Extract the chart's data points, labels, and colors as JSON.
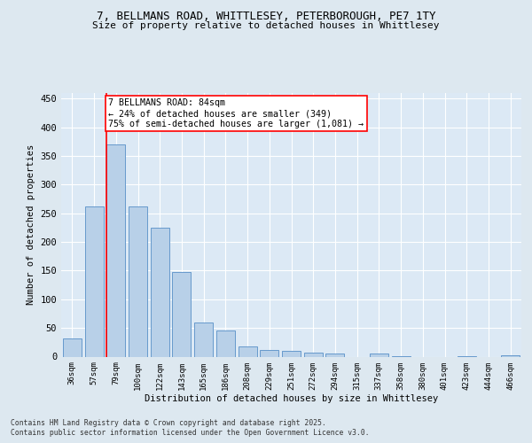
{
  "title_line1": "7, BELLMANS ROAD, WHITTLESEY, PETERBOROUGH, PE7 1TY",
  "title_line2": "Size of property relative to detached houses in Whittlesey",
  "xlabel": "Distribution of detached houses by size in Whittlesey",
  "ylabel": "Number of detached properties",
  "categories": [
    "36sqm",
    "57sqm",
    "79sqm",
    "100sqm",
    "122sqm",
    "143sqm",
    "165sqm",
    "186sqm",
    "208sqm",
    "229sqm",
    "251sqm",
    "272sqm",
    "294sqm",
    "315sqm",
    "337sqm",
    "358sqm",
    "380sqm",
    "401sqm",
    "423sqm",
    "444sqm",
    "466sqm"
  ],
  "values": [
    32,
    262,
    370,
    262,
    225,
    148,
    60,
    45,
    18,
    12,
    10,
    7,
    5,
    0,
    5,
    1,
    0,
    0,
    1,
    0,
    2
  ],
  "bar_color": "#b8d0e8",
  "bar_edge_color": "#6699cc",
  "red_line_index": 2,
  "annotation_title": "7 BELLMANS ROAD: 84sqm",
  "annotation_line2": "← 24% of detached houses are smaller (349)",
  "annotation_line3": "75% of semi-detached houses are larger (1,081) →",
  "ylim": [
    0,
    460
  ],
  "yticks": [
    0,
    50,
    100,
    150,
    200,
    250,
    300,
    350,
    400,
    450
  ],
  "footer_line1": "Contains HM Land Registry data © Crown copyright and database right 2025.",
  "footer_line2": "Contains public sector information licensed under the Open Government Licence v3.0.",
  "bg_color": "#dde8f0",
  "plot_bg_color": "#dce9f5"
}
